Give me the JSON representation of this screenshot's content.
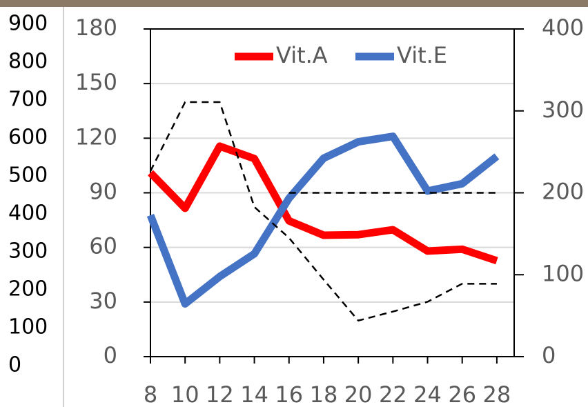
{
  "chart_data": {
    "type": "line",
    "x": [
      8,
      10,
      12,
      14,
      16,
      18,
      20,
      22,
      24,
      26,
      28
    ],
    "xlim": [
      8,
      29
    ],
    "xticks": [
      8,
      10,
      12,
      14,
      16,
      18,
      20,
      22,
      24,
      26,
      28
    ],
    "ylim": [
      0,
      180
    ],
    "yticks": [
      0,
      30,
      60,
      90,
      120,
      150,
      180
    ],
    "y2lim": [
      0,
      400
    ],
    "y2ticks": [
      0,
      100,
      200,
      300,
      400
    ],
    "y3lim": [
      0,
      900
    ],
    "y3ticks": [
      0,
      100,
      200,
      300,
      400,
      500,
      600,
      700,
      800,
      900
    ],
    "grid": true,
    "legend": "top",
    "series": [
      {
        "name": "Vit.A",
        "color": "#ff0000",
        "values": [
          101,
          81.5,
          115.6,
          108.8,
          74.6,
          66.7,
          67,
          69.7,
          58,
          59,
          52.7
        ]
      },
      {
        "name": "Vit.E",
        "color": "#4472c4",
        "values": [
          77.7,
          29,
          44,
          56.5,
          87,
          109,
          118,
          121,
          91,
          95,
          110
        ]
      },
      {
        "color": "#000000",
        "dashed": true,
        "axis": "y2",
        "values": [
          226.5,
          310.7,
          310.7,
          182.7,
          145,
          94,
          44,
          55,
          67,
          89,
          89
        ]
      },
      {
        "color": "#000000",
        "dashed": true,
        "axis": "y2",
        "values": [
          null,
          null,
          null,
          null,
          200,
          200,
          200,
          200,
          200,
          200,
          200
        ]
      }
    ]
  }
}
